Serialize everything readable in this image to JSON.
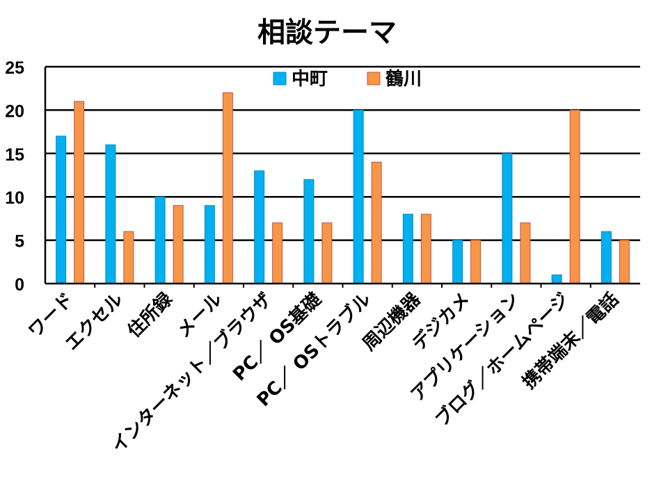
{
  "chart_data": {
    "type": "bar",
    "title": "相談テーマ",
    "categories": [
      "ワード",
      "エクセル",
      "住所録",
      "メール",
      "インターネット／ブラウザ",
      "PC／ OS基礎",
      "PC／ OSトラブル",
      "周辺機器",
      "デジカメ",
      "アプリケーション",
      "ブログ／ホームページ",
      "携帯端末／電話"
    ],
    "series": [
      {
        "name": "中町",
        "color": "#00B0F0",
        "values": [
          17,
          16,
          10,
          9,
          13,
          12,
          20,
          8,
          5,
          15,
          1,
          6
        ]
      },
      {
        "name": "鶴川",
        "color": "#F79646",
        "values": [
          21,
          6,
          9,
          22,
          7,
          7,
          14,
          8,
          5,
          7,
          20,
          5
        ]
      }
    ],
    "ylim": [
      0,
      25
    ],
    "yticks": [
      0,
      5,
      10,
      15,
      20,
      25
    ],
    "grid": true,
    "legend": "top-center",
    "xlabel": "",
    "ylabel": ""
  }
}
